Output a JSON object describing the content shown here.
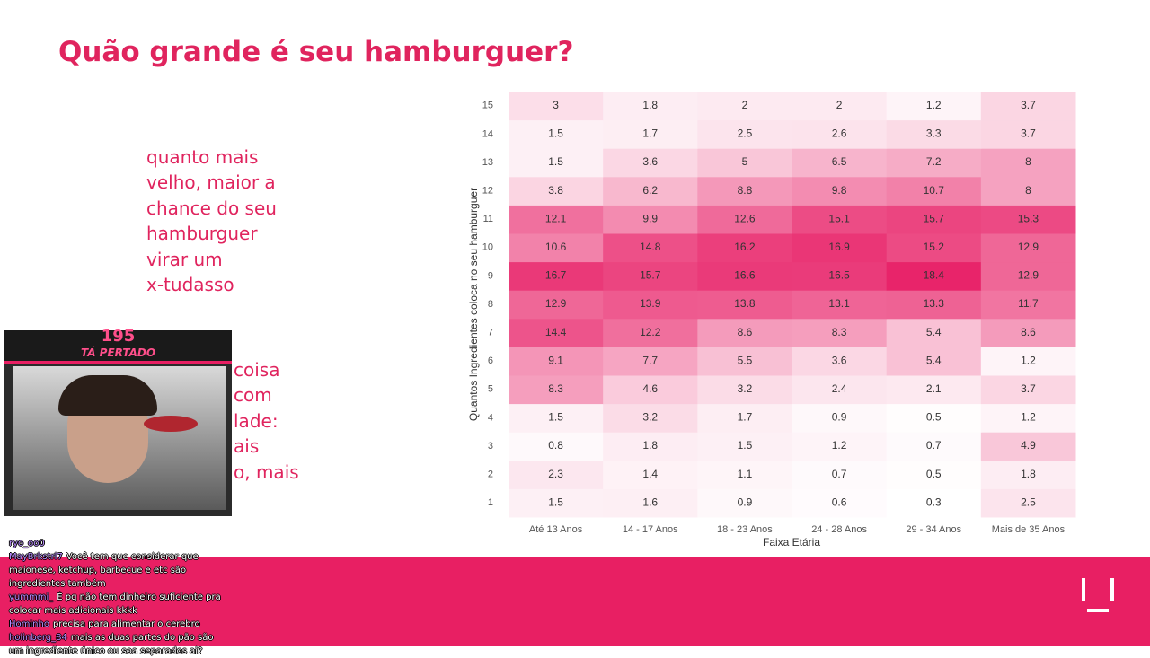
{
  "slide": {
    "title": "Quão grande é seu hamburguer?",
    "paragraph_1": [
      "quanto mais",
      "velho, maior a",
      "chance do seu",
      "hamburguer",
      "virar um",
      "x-tudasso"
    ],
    "paragraph_2_visible": [
      "coisa",
      "com",
      "lade:",
      "ais",
      "o, mais"
    ]
  },
  "chart_data": {
    "type": "heatmap",
    "x_label": "Faixa Etária",
    "y_label": "Quantos Ingredientes coloca no seu hamburguer",
    "x": [
      "Até 13 Anos",
      "14 - 17 Anos",
      "18 - 23 Anos",
      "24 - 28 Anos",
      "29 - 34 Anos",
      "Mais de 35 Anos"
    ],
    "y": [
      1,
      2,
      3,
      4,
      5,
      6,
      7,
      8,
      9,
      10,
      11,
      12,
      13,
      14,
      15
    ],
    "values": [
      [
        1.5,
        1.6,
        0.9,
        0.6,
        0.3,
        2.5
      ],
      [
        2.3,
        1.4,
        1.1,
        0.7,
        0.5,
        1.8
      ],
      [
        0.8,
        1.8,
        1.5,
        1.2,
        0.7,
        4.9
      ],
      [
        1.5,
        3.2,
        1.7,
        0.9,
        0.5,
        1.2
      ],
      [
        8.3,
        4.6,
        3.2,
        2.4,
        2.1,
        3.7
      ],
      [
        9.1,
        7.7,
        5.5,
        3.6,
        5.4,
        1.2
      ],
      [
        14.4,
        12.2,
        8.6,
        8.3,
        5.4,
        8.6
      ],
      [
        12.9,
        13.9,
        13.8,
        13.1,
        13.3,
        11.7
      ],
      [
        16.7,
        15.7,
        16.6,
        16.5,
        18.4,
        12.9
      ],
      [
        10.6,
        14.8,
        16.2,
        16.9,
        15.2,
        12.9
      ],
      [
        12.1,
        9.9,
        12.6,
        15.1,
        15.7,
        15.3
      ],
      [
        3.8,
        6.2,
        8.8,
        9.8,
        10.7,
        8
      ],
      [
        1.5,
        3.6,
        5,
        6.5,
        7.2,
        8
      ],
      [
        1.5,
        1.7,
        2.5,
        2.6,
        3.3,
        3.7
      ],
      [
        3,
        1.8,
        2,
        2,
        1.2,
        3.7
      ]
    ],
    "color_low": "#ffffff",
    "color_high": "#e8246a"
  },
  "webcam": {
    "count": "195",
    "banner": "TÁ PERTADO"
  },
  "chat": [
    {
      "user": "ryo_oo0",
      "text": ""
    },
    {
      "user": "MayBrkstrl7",
      "text": "Você tem que considerar que maionese, ketchup, barbecue e etc são ingredientes também"
    },
    {
      "user": "yummmi_",
      "text": "É pq não tem dinheiro suficiente pra colocar mais adicionais kkkk"
    },
    {
      "user": "Hominho",
      "text": "precisa para alimentar o cerebro"
    },
    {
      "user": "holinberg_84",
      "text": "mais as duas partes do pão são um ingrediente único ou soa separados ai?"
    }
  ]
}
